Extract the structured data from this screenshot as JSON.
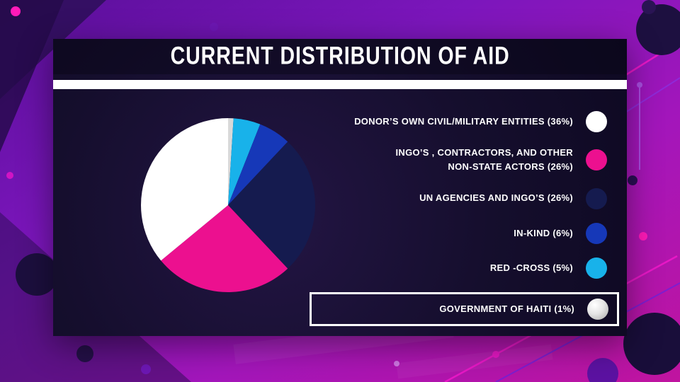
{
  "slide": {
    "title": "CURRENT DISTRIBUTION OF AID"
  },
  "chart_data": {
    "type": "pie",
    "title": "CURRENT DISTRIBUTION OF AID",
    "legend_position": "right",
    "start_angle": "top",
    "direction": "clockwise starting with smallest (last legend) segment",
    "total": 100,
    "segments": [
      {
        "label": "DONOR’S OWN CIVIL/MILITARY ENTITIES (36%)",
        "lines": [
          "DONOR’S OWN CIVIL/MILITARY ENTITIES (36%)"
        ],
        "value": 36,
        "color": "#ffffff"
      },
      {
        "label": "INGO’S , CONTRACTORS, AND OTHER NON-STATE ACTORS (26%)",
        "lines": [
          "INGO’S , CONTRACTORS, AND OTHER",
          "NON-STATE ACTORS (26%)"
        ],
        "value": 26,
        "color": "#ec108f"
      },
      {
        "label": "UN AGENCIES AND INGO’S (26%)",
        "lines": [
          "UN AGENCIES AND INGO’S (26%)"
        ],
        "value": 26,
        "color": "#151b4f"
      },
      {
        "label": "IN-KIND (6%)",
        "lines": [
          "IN-KIND (6%)"
        ],
        "value": 6,
        "color": "#1638b8"
      },
      {
        "label": "RED -CROSS (5%)",
        "lines": [
          "RED -CROSS (5%)"
        ],
        "value": 5,
        "color": "#18b2ea"
      },
      {
        "label": "GOVERNMENT OF HAITI (1%)",
        "lines": [
          "GOVERNMENT OF HAITI (1%)"
        ],
        "value": 1,
        "color": "#d9d9d9",
        "highlighted": true,
        "sphere": true
      }
    ]
  },
  "colors": {
    "accent_magenta": "#ec108f",
    "panel_dark": "#150e2d",
    "stripe_white": "#ffffff",
    "background_purple": "#7c16bc"
  }
}
